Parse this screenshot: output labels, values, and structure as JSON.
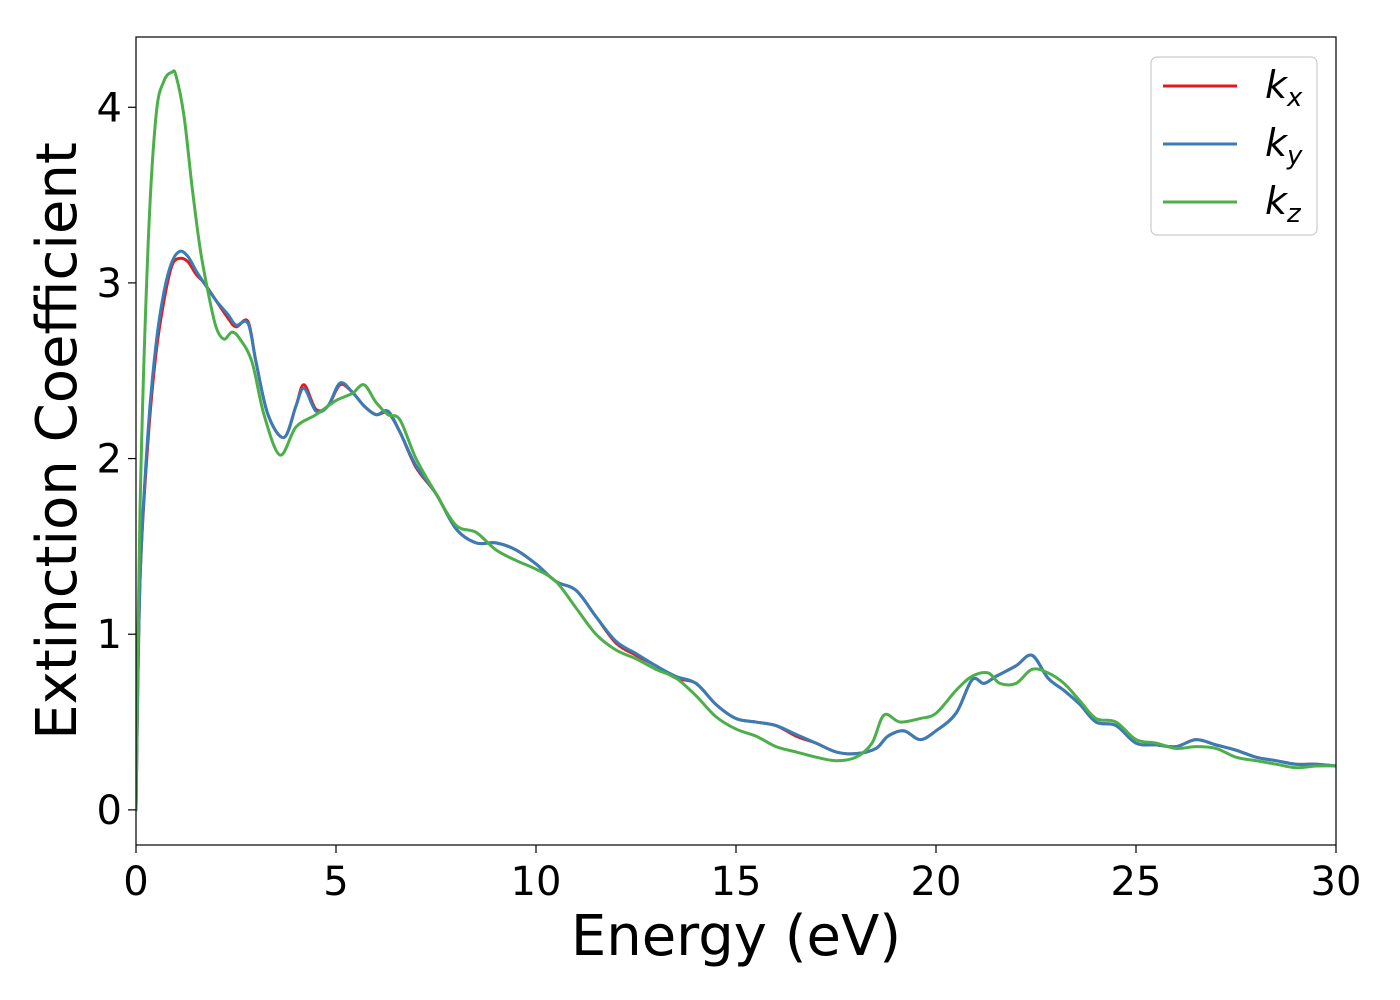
{
  "chart_data": {
    "type": "line",
    "title": "",
    "xlabel": "Energy (eV)",
    "ylabel": "Extinction Coefficient",
    "xlim": [
      0,
      30
    ],
    "ylim": [
      -0.2,
      4.4
    ],
    "xticks": [
      0,
      5,
      10,
      15,
      20,
      25,
      30
    ],
    "yticks": [
      0,
      1,
      2,
      3,
      4
    ],
    "legend_position": "top-right",
    "grid": false,
    "series": [
      {
        "name": "k_x",
        "label_base": "k",
        "label_sub": "x",
        "color": "#e41a1c",
        "x": [
          0,
          0.1,
          0.3,
          0.5,
          0.7,
          0.9,
          1.1,
          1.3,
          1.5,
          1.7,
          2.0,
          2.3,
          2.5,
          2.8,
          3.0,
          3.3,
          3.7,
          4.0,
          4.2,
          4.5,
          4.8,
          5.1,
          5.4,
          5.7,
          6.0,
          6.3,
          6.6,
          7.0,
          7.5,
          8.0,
          8.5,
          9.0,
          9.5,
          10.0,
          10.5,
          11.0,
          11.5,
          12.0,
          12.5,
          13.0,
          13.5,
          14.0,
          14.5,
          15.0,
          15.5,
          16.0,
          16.5,
          17.0,
          17.5,
          18.0,
          18.5,
          18.8,
          19.2,
          19.6,
          20.0,
          20.5,
          20.9,
          21.2,
          21.5,
          22.0,
          22.4,
          22.8,
          23.2,
          23.6,
          24.0,
          24.5,
          25.0,
          25.5,
          26.0,
          26.5,
          27.0,
          27.5,
          28.0,
          28.5,
          29.0,
          29.5,
          30.0
        ],
        "y": [
          0.0,
          1.3,
          2.1,
          2.6,
          2.9,
          3.1,
          3.14,
          3.12,
          3.05,
          3.0,
          2.9,
          2.8,
          2.75,
          2.78,
          2.55,
          2.25,
          2.12,
          2.3,
          2.42,
          2.28,
          2.3,
          2.42,
          2.38,
          2.3,
          2.25,
          2.26,
          2.15,
          1.95,
          1.8,
          1.6,
          1.52,
          1.52,
          1.48,
          1.4,
          1.3,
          1.25,
          1.1,
          0.95,
          0.88,
          0.82,
          0.75,
          0.72,
          0.6,
          0.52,
          0.5,
          0.48,
          0.42,
          0.38,
          0.33,
          0.32,
          0.35,
          0.42,
          0.45,
          0.4,
          0.45,
          0.55,
          0.74,
          0.72,
          0.76,
          0.82,
          0.88,
          0.75,
          0.68,
          0.6,
          0.5,
          0.48,
          0.38,
          0.37,
          0.36,
          0.4,
          0.37,
          0.34,
          0.3,
          0.28,
          0.26,
          0.26,
          0.25
        ]
      },
      {
        "name": "k_y",
        "label_base": "k",
        "label_sub": "y",
        "color": "#377eb8",
        "x": [
          0,
          0.1,
          0.3,
          0.5,
          0.7,
          0.9,
          1.1,
          1.3,
          1.5,
          1.7,
          2.0,
          2.3,
          2.5,
          2.8,
          3.0,
          3.3,
          3.7,
          4.0,
          4.2,
          4.5,
          4.8,
          5.1,
          5.4,
          5.7,
          6.0,
          6.3,
          6.6,
          7.0,
          7.5,
          8.0,
          8.5,
          9.0,
          9.5,
          10.0,
          10.5,
          11.0,
          11.5,
          12.0,
          12.5,
          13.0,
          13.5,
          14.0,
          14.5,
          15.0,
          15.5,
          16.0,
          16.5,
          17.0,
          17.5,
          18.0,
          18.5,
          18.8,
          19.2,
          19.6,
          20.0,
          20.5,
          20.9,
          21.2,
          21.5,
          22.0,
          22.4,
          22.8,
          23.2,
          23.6,
          24.0,
          24.5,
          25.0,
          25.5,
          26.0,
          26.5,
          27.0,
          27.5,
          28.0,
          28.5,
          29.0,
          29.5,
          30.0
        ],
        "y": [
          0.0,
          1.3,
          2.15,
          2.65,
          2.95,
          3.12,
          3.18,
          3.15,
          3.07,
          3.0,
          2.9,
          2.82,
          2.76,
          2.77,
          2.55,
          2.25,
          2.12,
          2.3,
          2.4,
          2.27,
          2.3,
          2.43,
          2.38,
          2.3,
          2.25,
          2.27,
          2.15,
          1.96,
          1.8,
          1.6,
          1.52,
          1.52,
          1.48,
          1.4,
          1.3,
          1.25,
          1.1,
          0.96,
          0.89,
          0.82,
          0.76,
          0.72,
          0.6,
          0.52,
          0.5,
          0.48,
          0.43,
          0.38,
          0.33,
          0.32,
          0.35,
          0.42,
          0.45,
          0.4,
          0.45,
          0.55,
          0.74,
          0.72,
          0.76,
          0.82,
          0.88,
          0.75,
          0.68,
          0.6,
          0.5,
          0.48,
          0.38,
          0.37,
          0.36,
          0.4,
          0.37,
          0.34,
          0.3,
          0.28,
          0.26,
          0.26,
          0.25
        ]
      },
      {
        "name": "k_z",
        "label_base": "k",
        "label_sub": "z",
        "color": "#4daf4a",
        "x": [
          0,
          0.1,
          0.3,
          0.5,
          0.7,
          0.9,
          1.0,
          1.2,
          1.4,
          1.6,
          1.8,
          2.0,
          2.2,
          2.4,
          2.6,
          2.9,
          3.2,
          3.6,
          4.0,
          4.5,
          5.0,
          5.4,
          5.7,
          6.0,
          6.3,
          6.6,
          7.0,
          7.5,
          8.0,
          8.5,
          9.0,
          9.5,
          10.0,
          10.5,
          11.0,
          11.5,
          12.0,
          12.5,
          13.0,
          13.5,
          14.0,
          14.5,
          15.0,
          15.5,
          16.0,
          16.5,
          17.0,
          17.5,
          18.0,
          18.4,
          18.7,
          19.1,
          19.6,
          20.0,
          20.5,
          20.9,
          21.3,
          21.6,
          22.0,
          22.4,
          22.8,
          23.2,
          23.6,
          24.0,
          24.5,
          25.0,
          25.5,
          26.0,
          26.5,
          27.0,
          27.5,
          28.0,
          28.5,
          29.0,
          29.5,
          30.0
        ],
        "y": [
          0.0,
          1.7,
          3.2,
          3.95,
          4.15,
          4.2,
          4.18,
          3.95,
          3.55,
          3.2,
          2.95,
          2.75,
          2.68,
          2.72,
          2.68,
          2.55,
          2.25,
          2.02,
          2.18,
          2.25,
          2.33,
          2.37,
          2.42,
          2.32,
          2.25,
          2.22,
          2.0,
          1.8,
          1.62,
          1.58,
          1.48,
          1.42,
          1.37,
          1.3,
          1.15,
          1.0,
          0.91,
          0.86,
          0.8,
          0.75,
          0.65,
          0.53,
          0.46,
          0.42,
          0.36,
          0.33,
          0.3,
          0.28,
          0.3,
          0.38,
          0.54,
          0.5,
          0.52,
          0.55,
          0.68,
          0.76,
          0.78,
          0.72,
          0.72,
          0.8,
          0.78,
          0.72,
          0.62,
          0.52,
          0.5,
          0.4,
          0.38,
          0.35,
          0.36,
          0.35,
          0.3,
          0.28,
          0.26,
          0.24,
          0.25,
          0.25
        ]
      }
    ]
  }
}
